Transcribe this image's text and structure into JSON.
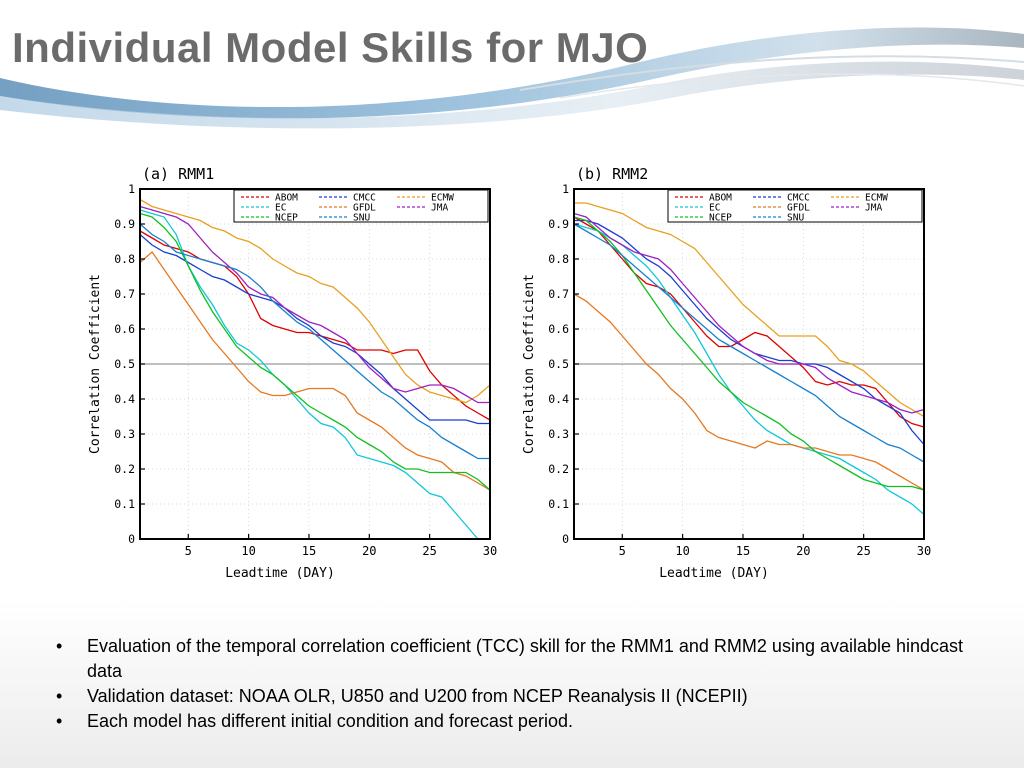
{
  "slide": {
    "title": "Individual Model Skills for MJO",
    "bullets": [
      "Evaluation of the temporal correlation coefficient (TCC) skill for the RMM1 and RMM2 using available hindcast data",
      "Validation dataset: NOAA OLR, U850 and U200 from NCEP Reanalysis II (NCEPII)",
      "Each model has different initial condition and forecast period."
    ],
    "bullet_symbol": "•"
  },
  "chart_data": [
    {
      "type": "line",
      "title": "(a) RMM1",
      "xlabel": "Leadtime (DAY)",
      "ylabel": "Correlation Coefficient",
      "xlim": [
        1,
        30
      ],
      "ylim": [
        0,
        1
      ],
      "xticks": [
        5,
        10,
        15,
        20,
        25,
        30
      ],
      "yticks": [
        0,
        0.1,
        0.2,
        0.3,
        0.4,
        0.5,
        0.6,
        0.7,
        0.8,
        0.9,
        1
      ],
      "ytick_labels": [
        "0",
        "0.1",
        "0.2",
        "0.3",
        "0.4",
        "0.5",
        "0.6",
        "0.7",
        "0.8",
        "0.9",
        "1"
      ],
      "reference_line": 0.5,
      "reference_color": "#999999",
      "grid": "dotted",
      "legend_position": "top-right",
      "x": [
        1,
        2,
        3,
        4,
        5,
        6,
        7,
        8,
        9,
        10,
        11,
        12,
        13,
        14,
        15,
        16,
        17,
        18,
        19,
        20,
        21,
        22,
        23,
        24,
        25,
        26,
        27,
        28,
        29,
        30
      ],
      "series": [
        {
          "name": "ABOM",
          "color": "#e00000",
          "values": [
            0.88,
            0.86,
            0.84,
            0.83,
            0.82,
            0.8,
            0.79,
            0.78,
            0.75,
            0.7,
            0.63,
            0.61,
            0.6,
            0.59,
            0.59,
            0.58,
            0.57,
            0.56,
            0.54,
            0.54,
            0.54,
            0.53,
            0.54,
            0.54,
            0.48,
            0.44,
            0.41,
            0.38,
            0.36,
            0.34
          ]
        },
        {
          "name": "CMCC",
          "color": "#1a3fd0",
          "values": [
            0.87,
            0.84,
            0.82,
            0.81,
            0.79,
            0.77,
            0.75,
            0.74,
            0.72,
            0.7,
            0.69,
            0.68,
            0.66,
            0.63,
            0.61,
            0.58,
            0.56,
            0.55,
            0.53,
            0.5,
            0.47,
            0.43,
            0.4,
            0.37,
            0.34,
            0.34,
            0.34,
            0.34,
            0.33,
            0.33
          ]
        },
        {
          "name": "ECMW",
          "color": "#e8a020",
          "values": [
            0.97,
            0.95,
            0.94,
            0.93,
            0.92,
            0.91,
            0.89,
            0.88,
            0.86,
            0.85,
            0.83,
            0.8,
            0.78,
            0.76,
            0.75,
            0.73,
            0.72,
            0.69,
            0.66,
            0.62,
            0.57,
            0.52,
            0.47,
            0.44,
            0.42,
            0.41,
            0.4,
            0.39,
            0.41,
            0.44
          ]
        },
        {
          "name": "EC",
          "color": "#10c8d8",
          "values": [
            0.94,
            0.93,
            0.92,
            0.87,
            0.78,
            0.72,
            0.67,
            0.61,
            0.56,
            0.54,
            0.51,
            0.47,
            0.44,
            0.4,
            0.36,
            0.33,
            0.32,
            0.29,
            0.24,
            0.23,
            0.22,
            0.21,
            0.19,
            0.16,
            0.13,
            0.12,
            0.08,
            0.04,
            0.0,
            0.0
          ]
        },
        {
          "name": "GFDL",
          "color": "#e87820",
          "values": [
            0.79,
            0.82,
            0.77,
            0.72,
            0.67,
            0.62,
            0.57,
            0.53,
            0.49,
            0.45,
            0.42,
            0.41,
            0.41,
            0.42,
            0.43,
            0.43,
            0.43,
            0.41,
            0.36,
            0.34,
            0.32,
            0.29,
            0.26,
            0.24,
            0.23,
            0.22,
            0.19,
            0.18,
            0.16,
            0.14
          ]
        },
        {
          "name": "JMA",
          "color": "#a020c0",
          "values": [
            0.95,
            0.94,
            0.93,
            0.92,
            0.9,
            0.86,
            0.82,
            0.79,
            0.76,
            0.72,
            0.7,
            0.69,
            0.66,
            0.64,
            0.62,
            0.61,
            0.59,
            0.57,
            0.53,
            0.49,
            0.46,
            0.43,
            0.42,
            0.43,
            0.44,
            0.44,
            0.43,
            0.41,
            0.39,
            0.39
          ]
        },
        {
          "name": "NCEP",
          "color": "#10c020",
          "values": [
            0.93,
            0.92,
            0.89,
            0.85,
            0.78,
            0.71,
            0.65,
            0.6,
            0.55,
            0.52,
            0.49,
            0.47,
            0.44,
            0.41,
            0.38,
            0.36,
            0.34,
            0.32,
            0.29,
            0.27,
            0.25,
            0.22,
            0.2,
            0.2,
            0.19,
            0.19,
            0.19,
            0.19,
            0.17,
            0.14
          ]
        },
        {
          "name": "SNU",
          "color": "#1880d0",
          "values": [
            0.9,
            0.87,
            0.85,
            0.82,
            0.81,
            0.8,
            0.79,
            0.78,
            0.77,
            0.75,
            0.72,
            0.68,
            0.65,
            0.62,
            0.6,
            0.57,
            0.54,
            0.51,
            0.48,
            0.45,
            0.42,
            0.4,
            0.37,
            0.34,
            0.32,
            0.29,
            0.27,
            0.25,
            0.23,
            0.23
          ]
        }
      ]
    },
    {
      "type": "line",
      "title": "(b) RMM2",
      "xlabel": "Leadtime (DAY)",
      "ylabel": "Correlation Coefficient",
      "xlim": [
        1,
        30
      ],
      "ylim": [
        0,
        1
      ],
      "xticks": [
        5,
        10,
        15,
        20,
        25,
        30
      ],
      "yticks": [
        0,
        0.1,
        0.2,
        0.3,
        0.4,
        0.5,
        0.6,
        0.7,
        0.8,
        0.9,
        1
      ],
      "ytick_labels": [
        "0",
        "0.1",
        "0.2",
        "0.3",
        "0.4",
        "0.5",
        "0.6",
        "0.7",
        "0.8",
        "0.9",
        "1"
      ],
      "reference_line": 0.5,
      "reference_color": "#999999",
      "grid": "dotted",
      "legend_position": "top-right",
      "x": [
        1,
        2,
        3,
        4,
        5,
        6,
        7,
        8,
        9,
        10,
        11,
        12,
        13,
        14,
        15,
        16,
        17,
        18,
        19,
        20,
        21,
        22,
        23,
        24,
        25,
        26,
        27,
        28,
        29,
        30
      ],
      "series": [
        {
          "name": "ABOM",
          "color": "#e00000",
          "values": [
            0.92,
            0.9,
            0.88,
            0.84,
            0.8,
            0.76,
            0.73,
            0.72,
            0.7,
            0.66,
            0.62,
            0.58,
            0.55,
            0.55,
            0.57,
            0.59,
            0.58,
            0.55,
            0.52,
            0.49,
            0.45,
            0.44,
            0.45,
            0.44,
            0.44,
            0.43,
            0.39,
            0.35,
            0.33,
            0.32
          ]
        },
        {
          "name": "CMCC",
          "color": "#1a3fd0",
          "values": [
            0.91,
            0.91,
            0.9,
            0.88,
            0.86,
            0.83,
            0.8,
            0.78,
            0.75,
            0.71,
            0.67,
            0.63,
            0.6,
            0.57,
            0.55,
            0.53,
            0.52,
            0.51,
            0.51,
            0.5,
            0.5,
            0.49,
            0.47,
            0.45,
            0.43,
            0.4,
            0.38,
            0.36,
            0.31,
            0.27
          ]
        },
        {
          "name": "ECMW",
          "color": "#e8a020",
          "values": [
            0.96,
            0.96,
            0.95,
            0.94,
            0.93,
            0.91,
            0.89,
            0.88,
            0.87,
            0.85,
            0.83,
            0.79,
            0.75,
            0.71,
            0.67,
            0.64,
            0.61,
            0.58,
            0.58,
            0.58,
            0.58,
            0.55,
            0.51,
            0.5,
            0.48,
            0.45,
            0.42,
            0.39,
            0.37,
            0.35
          ]
        },
        {
          "name": "EC",
          "color": "#10c8d8",
          "values": [
            0.9,
            0.89,
            0.88,
            0.86,
            0.84,
            0.81,
            0.78,
            0.74,
            0.69,
            0.64,
            0.59,
            0.53,
            0.47,
            0.42,
            0.38,
            0.34,
            0.31,
            0.29,
            0.27,
            0.26,
            0.25,
            0.24,
            0.23,
            0.21,
            0.19,
            0.17,
            0.14,
            0.12,
            0.1,
            0.07
          ]
        },
        {
          "name": "GFDL",
          "color": "#e87820",
          "values": [
            0.7,
            0.68,
            0.65,
            0.62,
            0.58,
            0.54,
            0.5,
            0.47,
            0.43,
            0.4,
            0.36,
            0.31,
            0.29,
            0.28,
            0.27,
            0.26,
            0.28,
            0.27,
            0.27,
            0.26,
            0.26,
            0.25,
            0.24,
            0.24,
            0.23,
            0.22,
            0.2,
            0.18,
            0.16,
            0.14
          ]
        },
        {
          "name": "JMA",
          "color": "#a020c0",
          "values": [
            0.93,
            0.92,
            0.89,
            0.86,
            0.84,
            0.82,
            0.81,
            0.8,
            0.77,
            0.73,
            0.69,
            0.65,
            0.61,
            0.58,
            0.55,
            0.53,
            0.51,
            0.5,
            0.5,
            0.5,
            0.49,
            0.46,
            0.44,
            0.42,
            0.41,
            0.4,
            0.39,
            0.37,
            0.36,
            0.37
          ]
        },
        {
          "name": "NCEP",
          "color": "#10c020",
          "values": [
            0.92,
            0.91,
            0.88,
            0.85,
            0.81,
            0.76,
            0.71,
            0.66,
            0.61,
            0.57,
            0.53,
            0.49,
            0.45,
            0.42,
            0.39,
            0.37,
            0.35,
            0.33,
            0.3,
            0.28,
            0.25,
            0.23,
            0.21,
            0.19,
            0.17,
            0.16,
            0.15,
            0.15,
            0.15,
            0.14
          ]
        },
        {
          "name": "SNU",
          "color": "#1880d0",
          "values": [
            0.9,
            0.88,
            0.86,
            0.84,
            0.81,
            0.78,
            0.75,
            0.72,
            0.69,
            0.66,
            0.63,
            0.6,
            0.57,
            0.55,
            0.53,
            0.51,
            0.49,
            0.47,
            0.45,
            0.43,
            0.41,
            0.38,
            0.35,
            0.33,
            0.31,
            0.29,
            0.27,
            0.26,
            0.24,
            0.22
          ]
        }
      ]
    }
  ]
}
